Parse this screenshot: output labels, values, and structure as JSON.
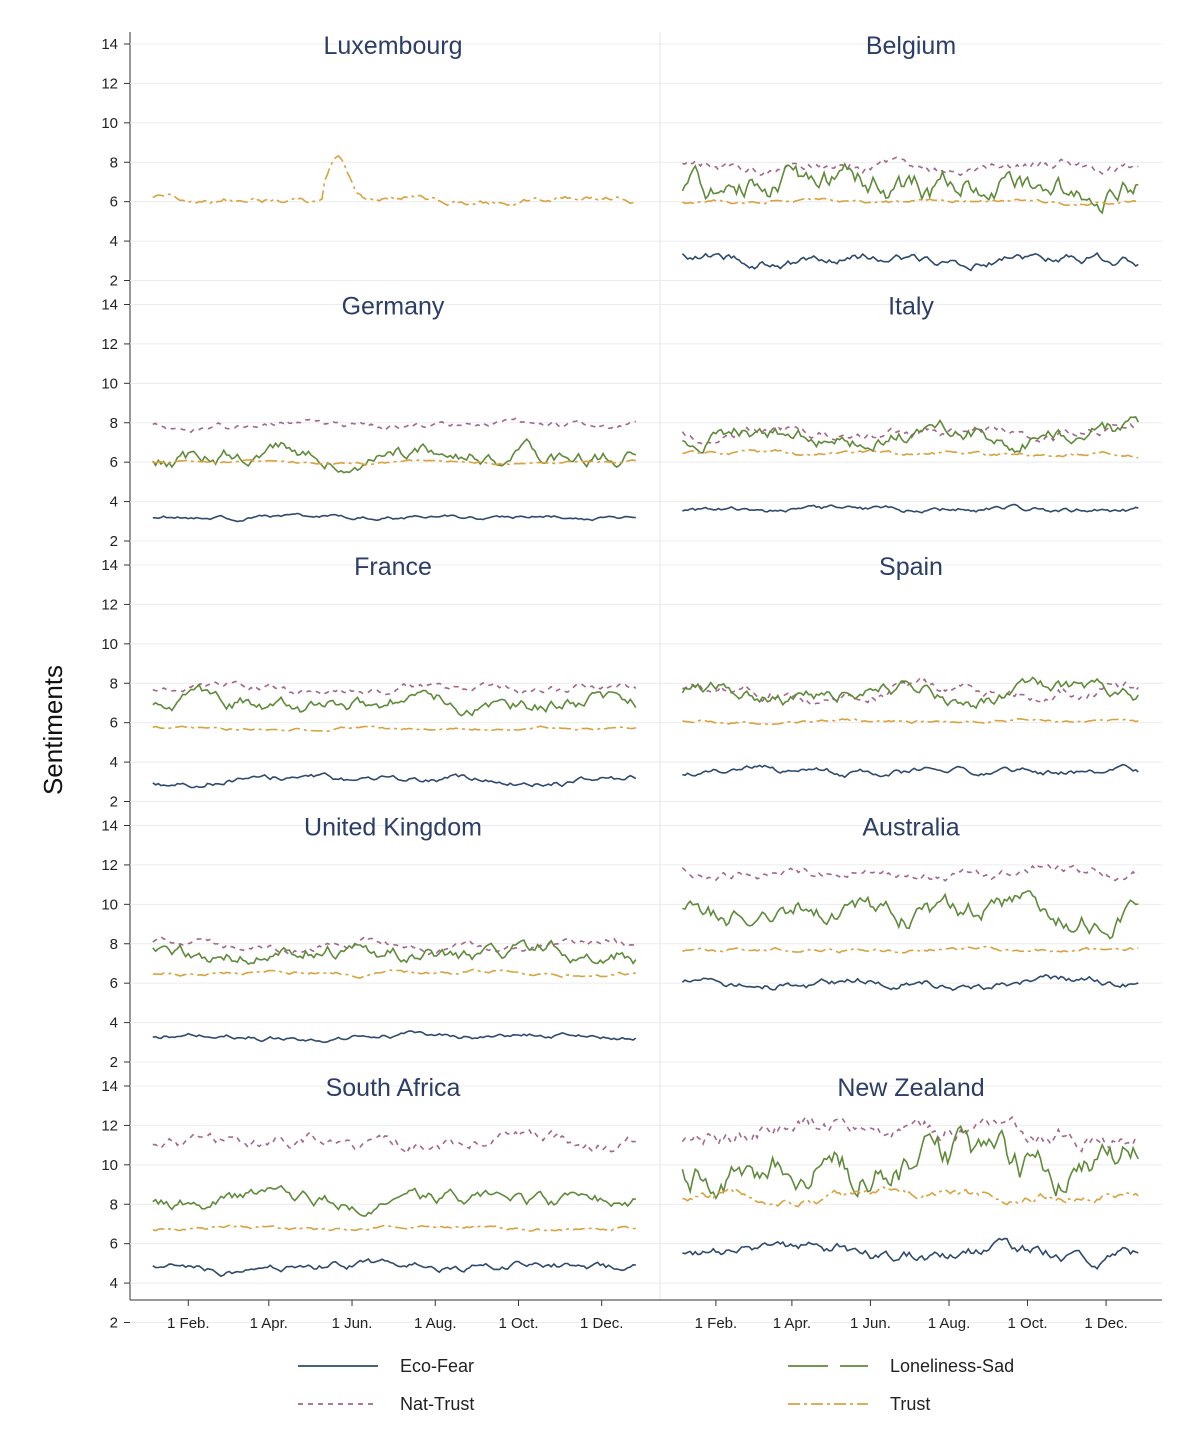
{
  "chart_data": {
    "type": "line",
    "ylabel": "Sentiments",
    "ylim": [
      2,
      14
    ],
    "yticks": [
      "2",
      "4",
      "6",
      "8",
      "10",
      "12",
      "14"
    ],
    "xlim": [
      0,
      365
    ],
    "xticks": [
      {
        "label": "1 Feb.",
        "day": 31
      },
      {
        "label": "1 Apr.",
        "day": 90
      },
      {
        "label": "1 Jun.",
        "day": 151
      },
      {
        "label": "1 Aug.",
        "day": 212
      },
      {
        "label": "1 Oct.",
        "day": 273
      },
      {
        "label": "1 Dec.",
        "day": 334
      }
    ],
    "grid": true,
    "legend_position": "bottom",
    "series_styles": [
      {
        "name": "Eco-Fear",
        "color": "#2f4a6d",
        "dash": "none"
      },
      {
        "name": "Nat-Trust",
        "color": "#a3668a",
        "dash": "5 5"
      },
      {
        "name": "Loneliness-Sad",
        "color": "#5f8a3a",
        "dash": "none"
      },
      {
        "name": "Trust",
        "color": "#d9a23e",
        "dash": "12 4 3 4"
      }
    ],
    "panels": [
      {
        "title": "Luxembourg",
        "series": [
          {
            "name": "Trust",
            "base": 6.1,
            "amp": 0.25,
            "bump": [
              140,
              2.2,
              10
            ]
          }
        ]
      },
      {
        "title": "Belgium",
        "series": [
          {
            "name": "Eco-Fear",
            "base": 3.1,
            "amp": 0.35
          },
          {
            "name": "Nat-Trust",
            "base": 7.8,
            "amp": 0.4
          },
          {
            "name": "Loneliness-Sad",
            "base": 6.9,
            "amp": 1.0
          },
          {
            "name": "Trust",
            "base": 6.0,
            "amp": 0.15
          }
        ]
      },
      {
        "title": "Germany",
        "series": [
          {
            "name": "Eco-Fear",
            "base": 3.2,
            "amp": 0.15
          },
          {
            "name": "Nat-Trust",
            "base": 7.9,
            "amp": 0.25
          },
          {
            "name": "Loneliness-Sad",
            "base": 6.4,
            "amp": 0.6
          },
          {
            "name": "Trust",
            "base": 6.0,
            "amp": 0.1
          }
        ]
      },
      {
        "title": "Italy",
        "series": [
          {
            "name": "Eco-Fear",
            "base": 3.6,
            "amp": 0.2
          },
          {
            "name": "Nat-Trust",
            "base": 7.6,
            "amp": 0.4
          },
          {
            "name": "Loneliness-Sad",
            "base": 7.4,
            "amp": 0.6
          },
          {
            "name": "Trust",
            "base": 6.4,
            "amp": 0.15
          }
        ]
      },
      {
        "title": "France",
        "series": [
          {
            "name": "Eco-Fear",
            "base": 3.1,
            "amp": 0.25
          },
          {
            "name": "Nat-Trust",
            "base": 7.7,
            "amp": 0.3
          },
          {
            "name": "Loneliness-Sad",
            "base": 7.0,
            "amp": 0.55
          },
          {
            "name": "Trust",
            "base": 5.7,
            "amp": 0.1
          }
        ]
      },
      {
        "title": "Spain",
        "series": [
          {
            "name": "Eco-Fear",
            "base": 3.5,
            "amp": 0.25
          },
          {
            "name": "Nat-Trust",
            "base": 7.6,
            "amp": 0.45
          },
          {
            "name": "Loneliness-Sad",
            "base": 7.4,
            "amp": 0.55
          },
          {
            "name": "Trust",
            "base": 6.1,
            "amp": 0.12
          }
        ]
      },
      {
        "title": "United Kingdom",
        "series": [
          {
            "name": "Eco-Fear",
            "base": 3.3,
            "amp": 0.2
          },
          {
            "name": "Nat-Trust",
            "base": 7.9,
            "amp": 0.3
          },
          {
            "name": "Loneliness-Sad",
            "base": 7.6,
            "amp": 0.6
          },
          {
            "name": "Trust",
            "base": 6.5,
            "amp": 0.15
          }
        ]
      },
      {
        "title": "Australia",
        "series": [
          {
            "name": "Eco-Fear",
            "base": 6.0,
            "amp": 0.3
          },
          {
            "name": "Nat-Trust",
            "base": 11.6,
            "amp": 0.35
          },
          {
            "name": "Loneliness-Sad",
            "base": 9.7,
            "amp": 0.8
          },
          {
            "name": "Trust",
            "base": 7.7,
            "amp": 0.15
          }
        ]
      },
      {
        "title": "South Africa",
        "series": [
          {
            "name": "Eco-Fear",
            "base": 4.8,
            "amp": 0.3
          },
          {
            "name": "Nat-Trust",
            "base": 11.2,
            "amp": 0.5
          },
          {
            "name": "Loneliness-Sad",
            "base": 8.2,
            "amp": 0.5
          },
          {
            "name": "Trust",
            "base": 6.8,
            "amp": 0.15
          }
        ]
      },
      {
        "title": "New Zealand",
        "series": [
          {
            "name": "Eco-Fear",
            "base": 5.5,
            "amp": 0.45
          },
          {
            "name": "Nat-Trust",
            "base": 11.6,
            "amp": 0.7
          },
          {
            "name": "Loneliness-Sad",
            "base": 10.0,
            "amp": 1.3
          },
          {
            "name": "Trust",
            "base": 8.4,
            "amp": 0.35
          }
        ]
      }
    ]
  }
}
